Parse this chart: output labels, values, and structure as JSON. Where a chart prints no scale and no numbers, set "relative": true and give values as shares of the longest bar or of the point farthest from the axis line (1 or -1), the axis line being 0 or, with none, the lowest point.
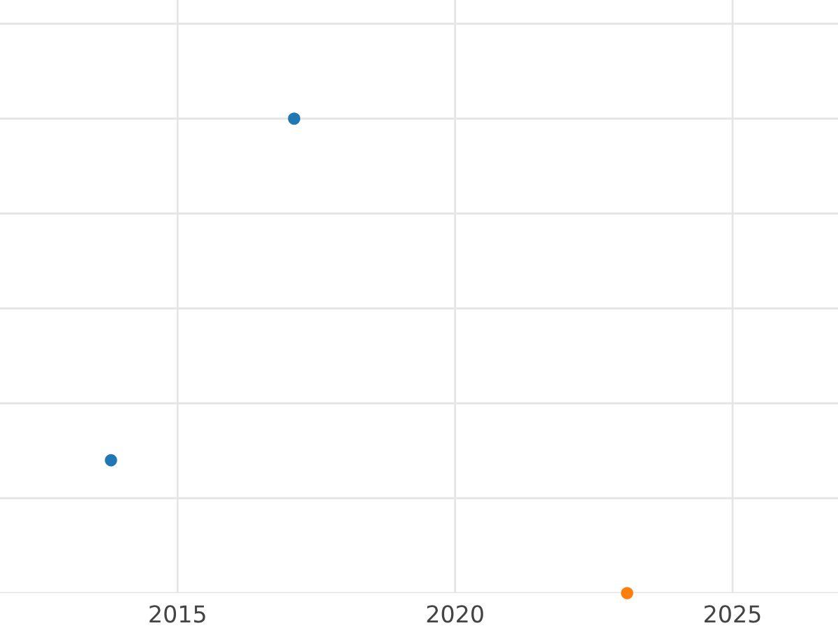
{
  "chart_data": {
    "type": "scatter",
    "relative": true,
    "xlim": [
      2011.8,
      2026.9
    ],
    "xticks": [
      2015,
      2020,
      2025
    ],
    "tick_labels": "x",
    "grid": true,
    "marker": "circle",
    "series": [
      {
        "color": "#1f77b4",
        "x": [
          2013.8,
          2017.1
        ],
        "values": [
          0.28,
          1
        ]
      },
      {
        "color": "#ff7f0e",
        "x": [
          2023.1
        ],
        "values": [
          0
        ]
      }
    ]
  }
}
